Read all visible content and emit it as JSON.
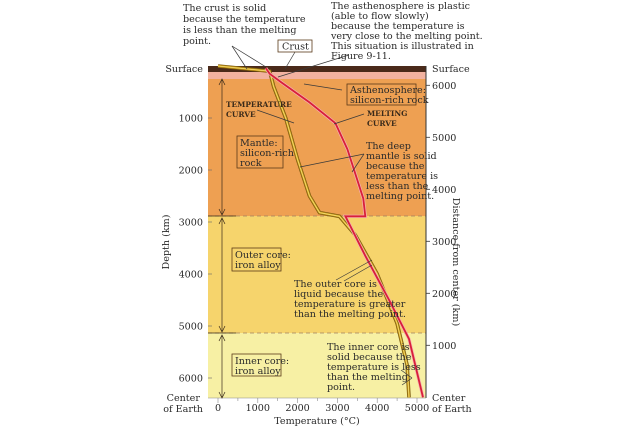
{
  "annotations": {
    "crust_solid": [
      "The crust is solid",
      "because the temperature",
      "is less than the melting",
      "point."
    ],
    "asthenosphere_plastic": [
      "The asthenosphere is plastic",
      "(able to flow slowly)",
      "because the temperature is",
      "very close to the melting point.",
      "This situation is illustrated in",
      "Figure 9-11."
    ],
    "deep_mantle": [
      "The deep",
      "mantle is solid",
      "because the",
      "temperature is",
      "less than the",
      "melting point."
    ],
    "outer_core_liquid": [
      "The outer core is",
      "liquid because the",
      "temperature is greater",
      "than the melting point."
    ],
    "inner_core_solid": [
      "The inner core is",
      "solid because the",
      "temperature is less",
      "than the melting",
      "point."
    ]
  },
  "layer_labels": {
    "crust": "Crust",
    "asthenosphere": [
      "Asthenosphere:",
      "silicon-rich rock"
    ],
    "mantle": [
      "Mantle:",
      "silicon-rich",
      "rock"
    ],
    "outer_core": [
      "Outer core:",
      "iron alloy"
    ],
    "inner_core": [
      "Inner core:",
      "iron alloy"
    ]
  },
  "curve_labels": {
    "temperature": [
      "TEMPERATURE",
      "CURVE"
    ],
    "melting": [
      "MELTING",
      "CURVE"
    ]
  },
  "axes": {
    "left_title": "Depth (km)",
    "left_top": "Surface",
    "left_bottom": [
      "Center",
      "of Earth"
    ],
    "left_ticks": [
      "1000",
      "2000",
      "3000",
      "4000",
      "5000",
      "6000"
    ],
    "right_title": "Distance from center (km)",
    "right_top": "Surface",
    "right_bottom": [
      "Center",
      "of Earth"
    ],
    "right_ticks": [
      "6000",
      "5000",
      "4000",
      "3000",
      "2000",
      "1000"
    ],
    "bottom_title": "Temperature (°C)",
    "bottom_ticks": [
      "0",
      "1000",
      "2000",
      "3000",
      "4000",
      "5000"
    ]
  },
  "colors": {
    "crust": "#4a2a1a",
    "asthenosphere": "#f2b2a0",
    "mantle": "#eea052",
    "outer_core": "#f6d46c",
    "inner_core": "#f7f0a4",
    "temperature_curve": "#c99a1a",
    "melting_curve": "#d8203a"
  },
  "curves": {
    "temperature": [
      [
        0,
        0
      ],
      [
        1300,
        100
      ],
      [
        1400,
        400
      ],
      [
        1700,
        1000
      ],
      [
        2000,
        1800
      ],
      [
        2300,
        2500
      ],
      [
        2550,
        2820
      ],
      [
        3050,
        2890
      ],
      [
        3450,
        3250
      ],
      [
        4000,
        4000
      ],
      [
        4500,
        4950
      ],
      [
        4750,
        5750
      ],
      [
        4800,
        6371
      ]
    ],
    "melting": [
      [
        1200,
        40
      ],
      [
        1300,
        150
      ],
      [
        1600,
        320
      ],
      [
        2300,
        700
      ],
      [
        2950,
        1100
      ],
      [
        3250,
        1600
      ],
      [
        3650,
        2550
      ],
      [
        3700,
        2890
      ],
      [
        3200,
        2890
      ],
      [
        3700,
        3650
      ],
      [
        4300,
        4500
      ],
      [
        4800,
        5250
      ],
      [
        5150,
        6371
      ]
    ]
  }
}
